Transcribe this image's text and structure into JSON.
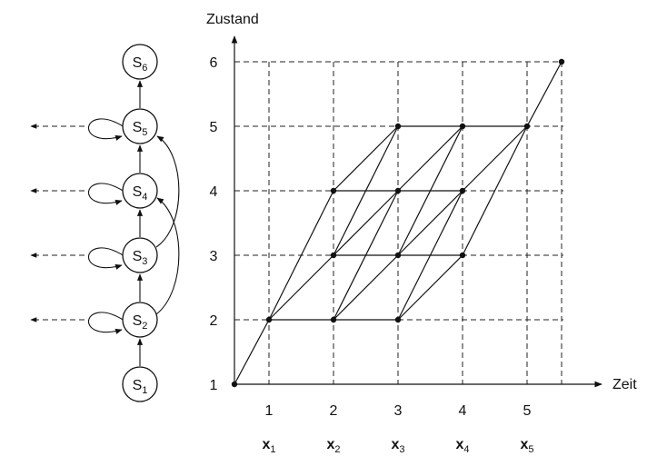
{
  "diagram": {
    "y_axis_label": "Zustand",
    "x_axis_label": "Zeit",
    "y_ticks": [
      "1",
      "2",
      "3",
      "4",
      "5",
      "6"
    ],
    "x_ticks": [
      "1",
      "2",
      "3",
      "4",
      "5"
    ],
    "observations": [
      {
        "base": "x",
        "sub": "1"
      },
      {
        "base": "x",
        "sub": "2"
      },
      {
        "base": "x",
        "sub": "3"
      },
      {
        "base": "x",
        "sub": "4"
      },
      {
        "base": "x",
        "sub": "5"
      }
    ],
    "states": [
      {
        "base": "S",
        "sub": "1"
      },
      {
        "base": "S",
        "sub": "2"
      },
      {
        "base": "S",
        "sub": "3"
      },
      {
        "base": "S",
        "sub": "4"
      },
      {
        "base": "S",
        "sub": "5"
      },
      {
        "base": "S",
        "sub": "6"
      }
    ]
  }
}
